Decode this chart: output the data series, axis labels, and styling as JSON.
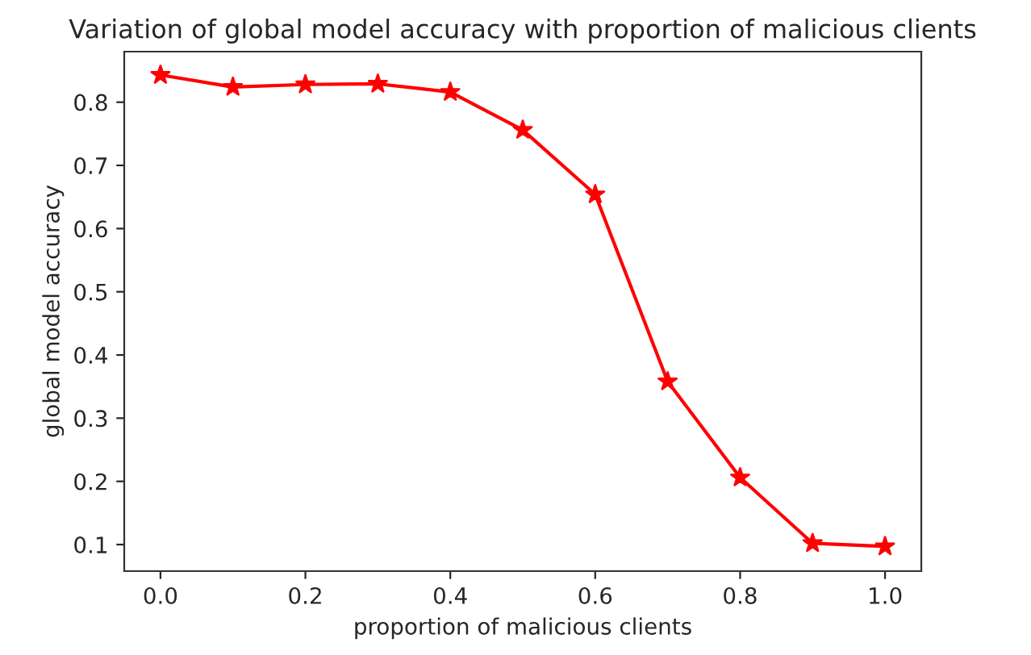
{
  "chart_data": {
    "type": "line",
    "title": "Variation of global model accuracy with proportion of malicious clients",
    "xlabel": "proportion of malicious clients",
    "ylabel": "global model accuracy",
    "x": [
      0.0,
      0.1,
      0.2,
      0.3,
      0.4,
      0.5,
      0.6,
      0.7,
      0.8,
      0.9,
      1.0
    ],
    "series": [
      {
        "color": "#ff0000",
        "values": [
          0.843,
          0.824,
          0.828,
          0.829,
          0.816,
          0.756,
          0.654,
          0.358,
          0.206,
          0.102,
          0.097
        ]
      }
    ],
    "xlim": [
      -0.05,
      1.05
    ],
    "ylim": [
      0.058,
      0.88
    ],
    "xticks": [
      {
        "value": 0.0,
        "label": "0.0"
      },
      {
        "value": 0.2,
        "label": "0.2"
      },
      {
        "value": 0.4,
        "label": "0.4"
      },
      {
        "value": 0.6,
        "label": "0.6"
      },
      {
        "value": 0.8,
        "label": "0.8"
      },
      {
        "value": 1.0,
        "label": "1.0"
      }
    ],
    "yticks": [
      0.1,
      0.2,
      0.3,
      0.4,
      0.5,
      0.6,
      0.7,
      0.8
    ],
    "marker": "star",
    "line_style": "solid"
  }
}
